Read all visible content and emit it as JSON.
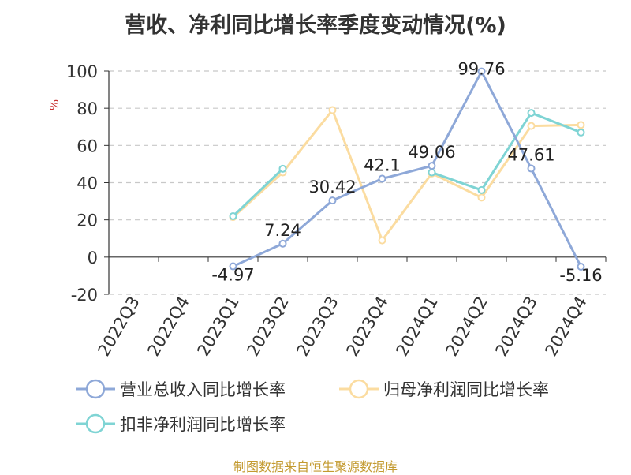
{
  "chart_data": {
    "type": "line",
    "title": "营收、净利同比增长率季度变动情况(%)",
    "ylabel": "%",
    "categories": [
      "2022Q3",
      "2022Q4",
      "2023Q1",
      "2023Q2",
      "2023Q3",
      "2023Q4",
      "2024Q1",
      "2024Q2",
      "2024Q3",
      "2024Q4"
    ],
    "ylim": [
      -20,
      100
    ],
    "yticks": [
      -20,
      0,
      20,
      40,
      60,
      80,
      100
    ],
    "grid": true,
    "legend_position": "bottom",
    "series": [
      {
        "name": "营业总收入同比增长率",
        "color": "#8ea8d8",
        "values": [
          null,
          null,
          -4.97,
          7.24,
          30.42,
          42.1,
          49.06,
          99.76,
          47.61,
          -5.16
        ],
        "labels": [
          "",
          "",
          "-4.97",
          "7.24",
          "30.42",
          "42.1",
          "49.06",
          "99.76",
          "47.61",
          "-5.16"
        ]
      },
      {
        "name": "归母净利润同比增长率",
        "color": "#fbdca0",
        "values": [
          null,
          null,
          21.5,
          45.5,
          79,
          9,
          45,
          32,
          70.5,
          71
        ],
        "labels": []
      },
      {
        "name": "扣非净利润同比增长率",
        "color": "#7fd4d4",
        "values": [
          null,
          null,
          22,
          47.5,
          null,
          null,
          45.5,
          36,
          77.5,
          67
        ],
        "labels": []
      }
    ]
  },
  "source": "制图数据来自恒生聚源数据库"
}
